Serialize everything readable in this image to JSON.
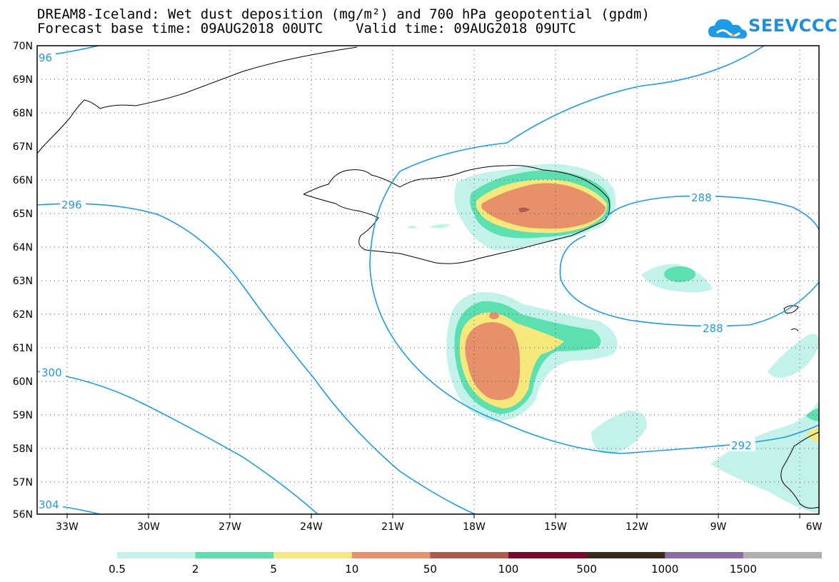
{
  "header": {
    "title_line1": "DREAM8-Iceland: Wet dust deposition (mg/m²) and 700 hPa geopotential (gpdm)",
    "title_line2": "Forecast base time: 09AUG2018 00UTC    Valid time: 09AUG2018 09UTC",
    "logo_text": "SEEVCCC"
  },
  "map": {
    "lat_labels": [
      "70N",
      "69N",
      "68N",
      "67N",
      "66N",
      "65N",
      "64N",
      "63N",
      "62N",
      "61N",
      "60N",
      "59N",
      "58N",
      "57N",
      "56N"
    ],
    "lon_labels": [
      "33W",
      "30W",
      "27W",
      "24W",
      "21W",
      "18W",
      "15W",
      "12W",
      "9W",
      "6W"
    ],
    "contour_labels": [
      "96",
      "296",
      "300",
      "304",
      "288",
      "288",
      "292"
    ]
  },
  "legend": {
    "colors": [
      "#c2f2ea",
      "#5ce0b0",
      "#f6e87a",
      "#e8906a",
      "#b05a4e",
      "#7a0a2a",
      "#3a2a1a",
      "#8a6aa0",
      "#b0b0b0"
    ],
    "labels": [
      "0.5",
      "2",
      "5",
      "10",
      "50",
      "100",
      "500",
      "1000",
      "1500"
    ]
  }
}
